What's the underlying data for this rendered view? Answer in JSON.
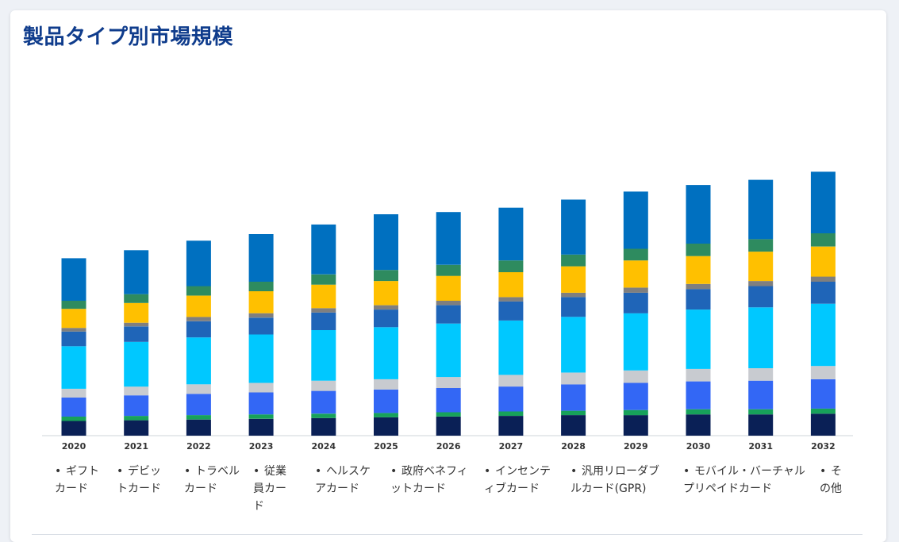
{
  "page": {
    "title": "製品タイプ別市場規模"
  },
  "chart_data": {
    "type": "bar",
    "stacked": true,
    "categories": [
      "2020",
      "2021",
      "2022",
      "2023",
      "2024",
      "2025",
      "2026",
      "2027",
      "2028",
      "2029",
      "2030",
      "2031",
      "2032"
    ],
    "series": [
      {
        "name": "ギフトカード",
        "color": "#0a2056",
        "values": [
          20,
          21,
          22,
          23,
          24,
          25,
          26,
          27,
          28,
          28,
          29,
          29,
          30
        ]
      },
      {
        "name": "デビットカード",
        "color": "#17a25a",
        "values": [
          6,
          6,
          6,
          6,
          6,
          6,
          6,
          6,
          6,
          7,
          7,
          7,
          7
        ]
      },
      {
        "name": "トラベルカード",
        "color": "#3367f5",
        "values": [
          26,
          28,
          29,
          30,
          31,
          32,
          33,
          34,
          36,
          37,
          38,
          39,
          40
        ]
      },
      {
        "name": "従業員カード",
        "color": "#c8cbd0",
        "values": [
          12,
          12,
          13,
          13,
          14,
          14,
          15,
          16,
          16,
          17,
          17,
          17,
          18
        ]
      },
      {
        "name": "ヘルスケアカード",
        "color": "#00c8ff",
        "values": [
          58,
          61,
          64,
          66,
          69,
          71,
          73,
          74,
          76,
          78,
          81,
          83,
          85
        ]
      },
      {
        "name": "政府ベネフィットカード",
        "color": "#1f65b8",
        "values": [
          20,
          21,
          22,
          23,
          24,
          24,
          25,
          26,
          27,
          28,
          28,
          29,
          30
        ]
      },
      {
        "name": "インセンティブカード",
        "color": "#7f7f7f",
        "values": [
          5,
          5,
          6,
          6,
          6,
          6,
          6,
          6,
          6,
          7,
          7,
          7,
          7
        ]
      },
      {
        "name": "汎用リローダブルカード(GPR)",
        "color": "#ffc000",
        "values": [
          26,
          27,
          29,
          30,
          32,
          33,
          34,
          34,
          36,
          37,
          38,
          40,
          41
        ]
      },
      {
        "name": "モバイル・バーチャルプリペイドカード",
        "color": "#2e8b5f",
        "values": [
          11,
          12,
          13,
          13,
          14,
          15,
          15,
          16,
          16,
          16,
          17,
          17,
          18
        ]
      },
      {
        "name": "その他",
        "color": "#0070c0",
        "values": [
          58,
          60,
          62,
          65,
          68,
          76,
          72,
          72,
          75,
          78,
          80,
          81,
          84
        ]
      }
    ],
    "legend_placement": "bottom",
    "grid": false,
    "ylim": [
      0,
      420
    ]
  },
  "legend_labels": [
    "ギフトカード",
    "デビットカード",
    "トラベルカード",
    "従業員カード",
    "ヘルスケアカード",
    "政府ベネフィットカード",
    "インセンティブカード",
    "汎用リローダブルカード(GPR)",
    "モバイル・バーチャルプリペイドカード",
    "その他"
  ]
}
